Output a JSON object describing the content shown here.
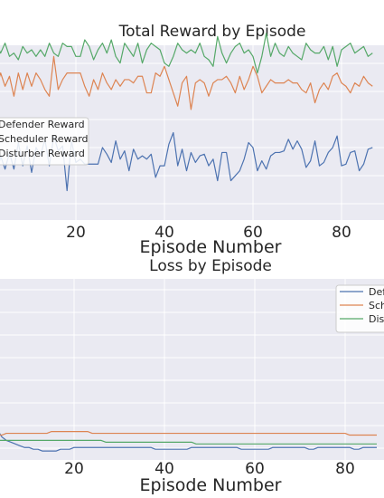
{
  "chart_data": [
    {
      "type": "line",
      "title": "Total Reward by Episode",
      "xlabel": "Episode Number",
      "ylabel": "",
      "xlim": [
        -1,
        88
      ],
      "ylim": [
        0,
        100
      ],
      "xticks": [
        20,
        40,
        60,
        80
      ],
      "grid": true,
      "legend": "left",
      "series": [
        {
          "name": "Defender Reward",
          "color": "#4c72b0",
          "values": [
            31,
            40,
            23,
            36,
            28,
            38,
            28,
            44,
            30,
            42,
            26,
            41,
            36,
            46,
            30,
            48,
            39,
            42,
            15,
            45,
            32,
            34,
            31,
            31,
            31,
            31,
            41,
            37,
            32,
            45,
            34,
            39,
            27,
            40,
            34,
            36,
            34,
            37,
            23,
            30,
            30,
            43,
            50,
            30,
            40,
            27,
            38,
            32,
            36,
            37,
            30,
            34,
            21,
            38,
            38,
            21,
            24,
            27,
            34,
            44,
            41,
            27,
            33,
            28,
            36,
            38,
            38,
            39,
            46,
            40,
            45,
            40,
            29,
            33,
            45,
            30,
            32,
            38,
            41,
            48,
            30,
            31,
            38,
            39,
            27,
            31,
            40,
            41
          ]
        },
        {
          "name": "Scheduler Reward",
          "color": "#dd8452",
          "values": [
            84,
            80,
            76,
            86,
            78,
            84,
            72,
            86,
            76,
            86,
            78,
            86,
            82,
            76,
            72,
            96,
            76,
            82,
            86,
            86,
            86,
            86,
            78,
            72,
            82,
            76,
            86,
            80,
            76,
            82,
            78,
            82,
            82,
            80,
            84,
            84,
            74,
            74,
            86,
            84,
            90,
            82,
            74,
            66,
            80,
            84,
            64,
            80,
            82,
            80,
            72,
            80,
            82,
            82,
            84,
            80,
            74,
            84,
            76,
            82,
            90,
            84,
            74,
            78,
            82,
            80,
            80,
            80,
            82,
            80,
            80,
            76,
            74,
            80,
            68,
            76,
            80,
            76,
            84,
            86,
            80,
            78,
            74,
            80,
            78,
            84,
            80,
            78
          ]
        },
        {
          "name": "Disturber Reward",
          "color": "#55a868",
          "values": [
            100,
            100,
            104,
            98,
            104,
            96,
            98,
            94,
            102,
            98,
            100,
            96,
            100,
            96,
            104,
            98,
            96,
            104,
            102,
            102,
            96,
            96,
            106,
            102,
            94,
            100,
            104,
            98,
            106,
            96,
            92,
            104,
            100,
            96,
            104,
            92,
            100,
            104,
            102,
            100,
            92,
            90,
            96,
            104,
            100,
            98,
            100,
            98,
            104,
            96,
            94,
            90,
            108,
            98,
            92,
            98,
            102,
            104,
            98,
            100,
            96,
            86,
            96,
            110,
            96,
            104,
            98,
            96,
            102,
            98,
            96,
            94,
            104,
            100,
            98,
            98,
            102,
            94,
            102,
            90,
            100,
            102,
            104,
            98,
            100,
            102,
            96,
            98
          ]
        }
      ]
    },
    {
      "type": "line",
      "title": "Loss by Episode",
      "xlabel": "Episode Number",
      "ylabel": "",
      "xlim": [
        -1,
        88
      ],
      "ylim": [
        0,
        100
      ],
      "xticks": [
        20,
        40,
        60,
        80
      ],
      "grid": true,
      "legend": "top-right",
      "series": [
        {
          "name": "Defender Reward",
          "color": "#4c72b0",
          "values": [
            24,
            22,
            20,
            16,
            12,
            10,
            9,
            8,
            7,
            6,
            6,
            5,
            5,
            4,
            4,
            4,
            4,
            5,
            5,
            5,
            6,
            6,
            6,
            6,
            6,
            6,
            6,
            6,
            6,
            6,
            6,
            6,
            6,
            6,
            6,
            6,
            6,
            6,
            5,
            5,
            5,
            5,
            5,
            5,
            5,
            5,
            6,
            6,
            6,
            6,
            6,
            6,
            6,
            6,
            6,
            6,
            6,
            5,
            5,
            5,
            5,
            5,
            5,
            5,
            6,
            6,
            6,
            6,
            6,
            6,
            6,
            6,
            5,
            5,
            6,
            6,
            6,
            6,
            6,
            6,
            6,
            6,
            5,
            5,
            6,
            6,
            6,
            6
          ]
        },
        {
          "name": "Scheduler Reward",
          "color": "#dd8452",
          "values": [
            11,
            12,
            13,
            13,
            13,
            14,
            14,
            14,
            14,
            14,
            14,
            14,
            14,
            14,
            14,
            15,
            15,
            15,
            15,
            15,
            15,
            15,
            15,
            15,
            14,
            14,
            14,
            14,
            14,
            14,
            14,
            14,
            14,
            14,
            14,
            14,
            14,
            14,
            14,
            14,
            14,
            14,
            14,
            14,
            14,
            14,
            14,
            14,
            14,
            14,
            14,
            14,
            14,
            14,
            14,
            14,
            14,
            14,
            14,
            14,
            14,
            14,
            14,
            14,
            14,
            14,
            14,
            14,
            14,
            14,
            14,
            14,
            14,
            14,
            14,
            14,
            14,
            14,
            14,
            14,
            14,
            13,
            13,
            13,
            13,
            13,
            13,
            13
          ]
        },
        {
          "name": "Disturber Reward",
          "color": "#55a868",
          "values": [
            8,
            9,
            10,
            10,
            10,
            10,
            10,
            10,
            10,
            10,
            10,
            10,
            10,
            10,
            10,
            10,
            10,
            10,
            10,
            10,
            10,
            10,
            10,
            10,
            10,
            10,
            10,
            9,
            9,
            9,
            9,
            9,
            9,
            9,
            9,
            9,
            9,
            9,
            9,
            9,
            9,
            9,
            9,
            9,
            9,
            9,
            9,
            8,
            8,
            8,
            8,
            8,
            8,
            8,
            8,
            8,
            8,
            8,
            8,
            8,
            8,
            8,
            8,
            8,
            8,
            8,
            8,
            8,
            8,
            8,
            8,
            8,
            8,
            8,
            8,
            8,
            8,
            8,
            8,
            8,
            8,
            8,
            8,
            8,
            8,
            8,
            8,
            8
          ]
        }
      ]
    }
  ]
}
